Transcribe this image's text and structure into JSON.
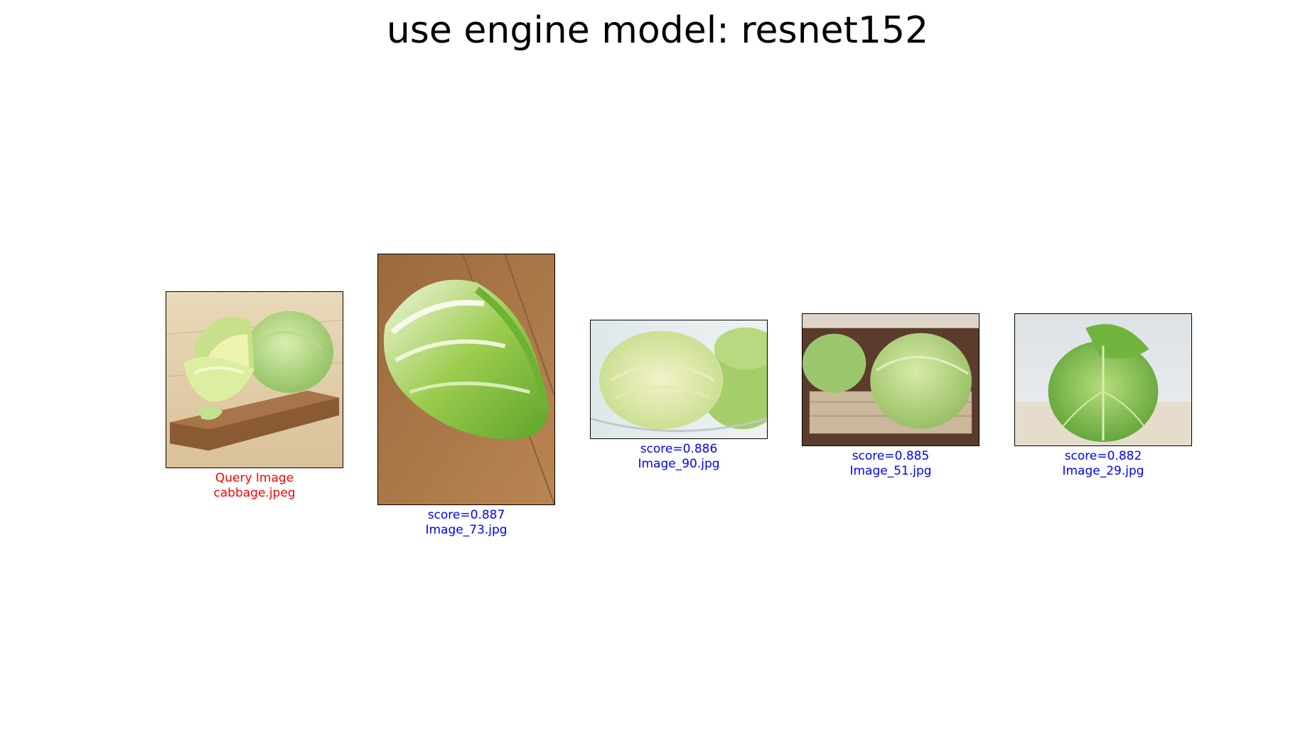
{
  "figure": {
    "title": "use engine model: resnet152",
    "title_color": "#000000"
  },
  "query": {
    "label": "Query Image",
    "filename": "cabbage.jpeg",
    "color": "#ff0000",
    "image": "cabbage halves on a wooden cutting board"
  },
  "results": [
    {
      "score_text": "score=0.887",
      "filename": "Image_73.jpg",
      "color": "#0000ff",
      "image": "napa cabbage on wooden table"
    },
    {
      "score_text": "score=0.886",
      "filename": "Image_90.jpg",
      "color": "#0000ff",
      "image": "cabbage half in glass bowl"
    },
    {
      "score_text": "score=0.885",
      "filename": "Image_51.jpg",
      "color": "#0000ff",
      "image": "two cabbages on woven mat"
    },
    {
      "score_text": "score=0.882",
      "filename": "Image_29.jpg",
      "color": "#0000ff",
      "image": "single green cabbage on table"
    }
  ]
}
